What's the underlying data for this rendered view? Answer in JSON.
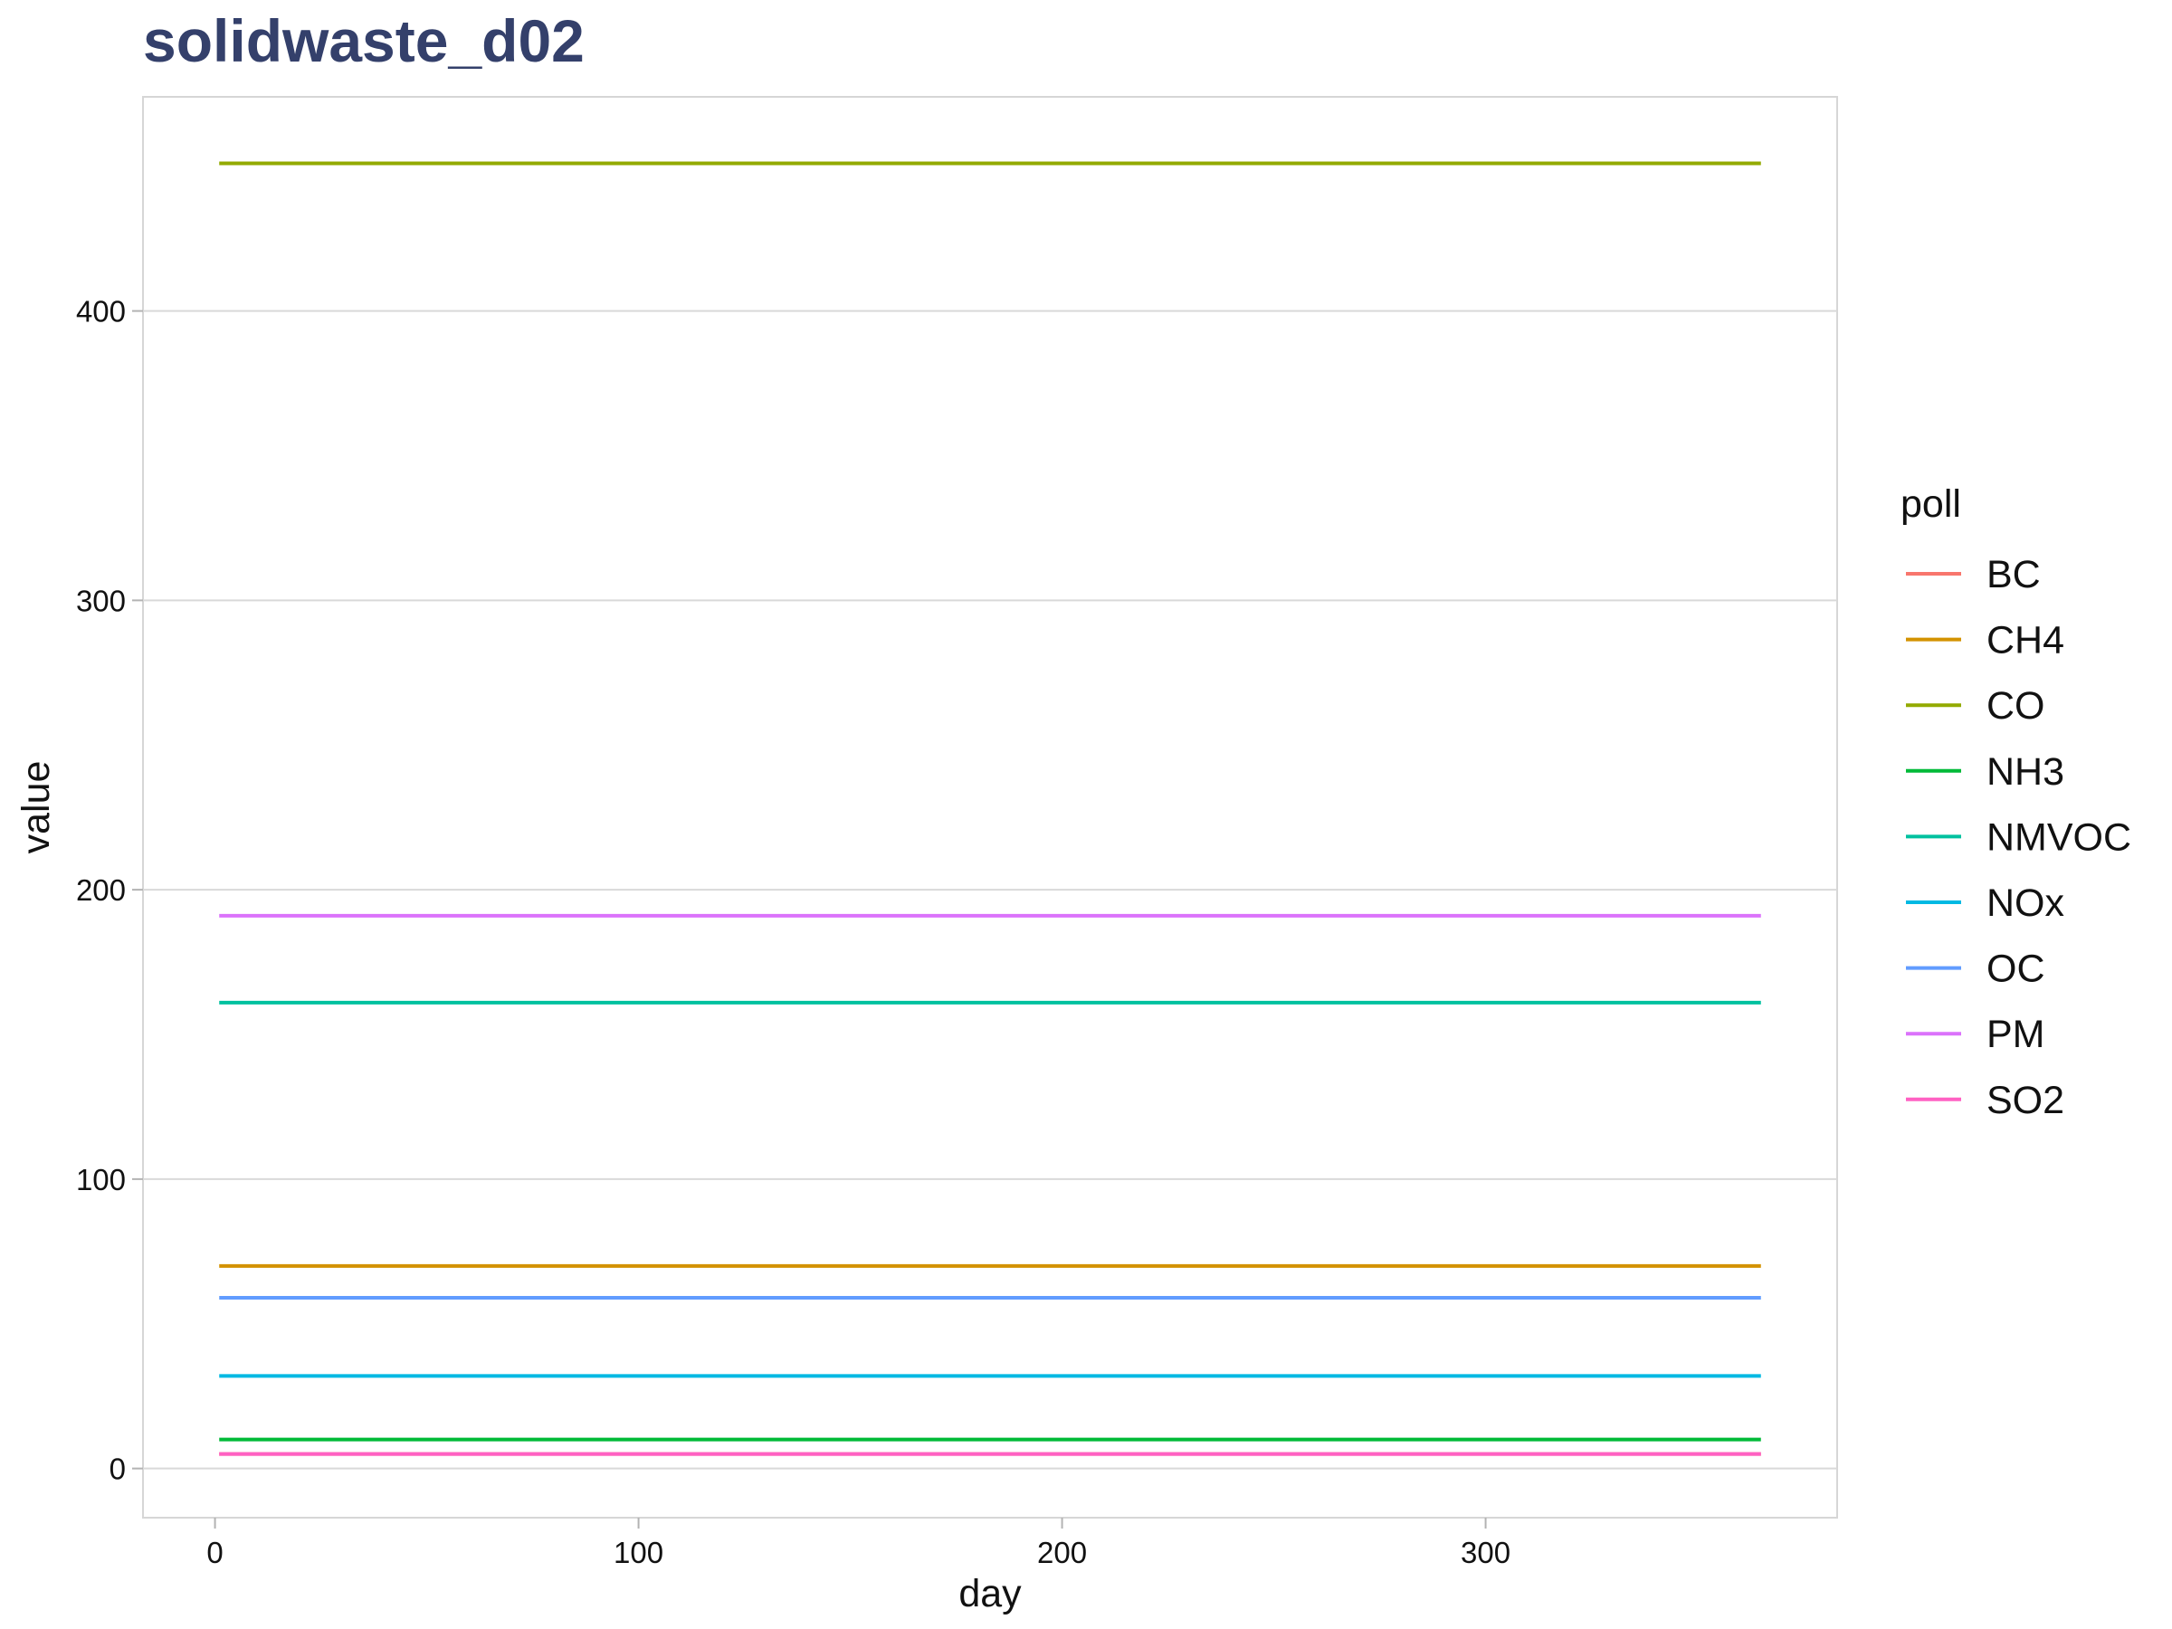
{
  "chart_data": {
    "type": "line",
    "title": "solidwaste_d02",
    "xlabel": "day",
    "ylabel": "value",
    "xlim": [
      -17,
      383
    ],
    "ylim": [
      -17,
      474
    ],
    "x_ticks": [
      0,
      100,
      200,
      300
    ],
    "y_ticks": [
      0,
      100,
      200,
      300,
      400
    ],
    "x": [
      1,
      365
    ],
    "grid": "horizontal",
    "legend": {
      "title": "poll",
      "position": "right"
    },
    "series": [
      {
        "name": "BC",
        "color": "#F8766D",
        "values": [
          5,
          5
        ]
      },
      {
        "name": "CH4",
        "color": "#D39200",
        "values": [
          70,
          70
        ]
      },
      {
        "name": "CO",
        "color": "#93AA00",
        "values": [
          451,
          451
        ]
      },
      {
        "name": "NH3",
        "color": "#00BA38",
        "values": [
          10,
          10
        ]
      },
      {
        "name": "NMVOC",
        "color": "#00C19F",
        "values": [
          161,
          161
        ]
      },
      {
        "name": "NOx",
        "color": "#00B9E3",
        "values": [
          32,
          32
        ]
      },
      {
        "name": "OC",
        "color": "#619CFF",
        "values": [
          59,
          59
        ]
      },
      {
        "name": "PM",
        "color": "#DB72FB",
        "values": [
          191,
          191
        ]
      },
      {
        "name": "SO2",
        "color": "#FF61C3",
        "values": [
          5,
          5
        ]
      }
    ]
  }
}
